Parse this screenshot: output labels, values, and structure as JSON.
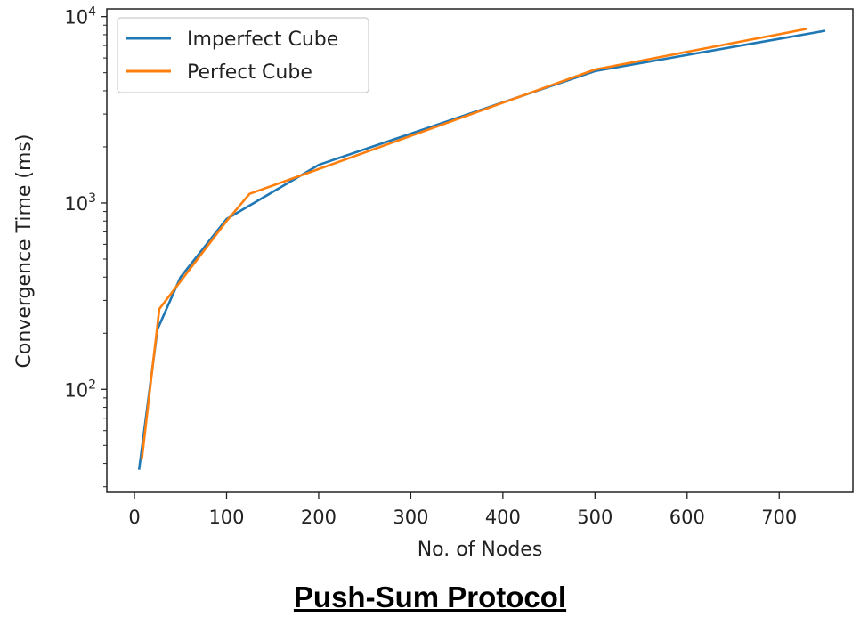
{
  "caption": "Push-Sum Protocol",
  "chart_data": {
    "type": "line",
    "title": "",
    "xlabel": "No. of Nodes",
    "ylabel": "Convergence Time (ms)",
    "xlim": [
      -30,
      780
    ],
    "ylim": [
      28,
      11000
    ],
    "yscale": "log",
    "xticks": [
      0,
      100,
      200,
      300,
      400,
      500,
      600,
      700
    ],
    "yticks": [
      {
        "value": 100,
        "base": "10",
        "exp": "2"
      },
      {
        "value": 1000,
        "base": "10",
        "exp": "3"
      },
      {
        "value": 10000,
        "base": "10",
        "exp": "4"
      }
    ],
    "grid": false,
    "legend_position": "top-left",
    "series": [
      {
        "name": "Imperfect Cube",
        "color": "#1f77b4",
        "x": [
          5,
          25,
          50,
          100,
          200,
          500,
          750
        ],
        "y": [
          37,
          210,
          400,
          820,
          1600,
          5100,
          8400
        ]
      },
      {
        "name": "Perfect Cube",
        "color": "#ff7f0e",
        "x": [
          8,
          27,
          50,
          100,
          125,
          200,
          500,
          730
        ],
        "y": [
          42,
          270,
          380,
          800,
          1120,
          1520,
          5200,
          8600
        ]
      }
    ]
  }
}
